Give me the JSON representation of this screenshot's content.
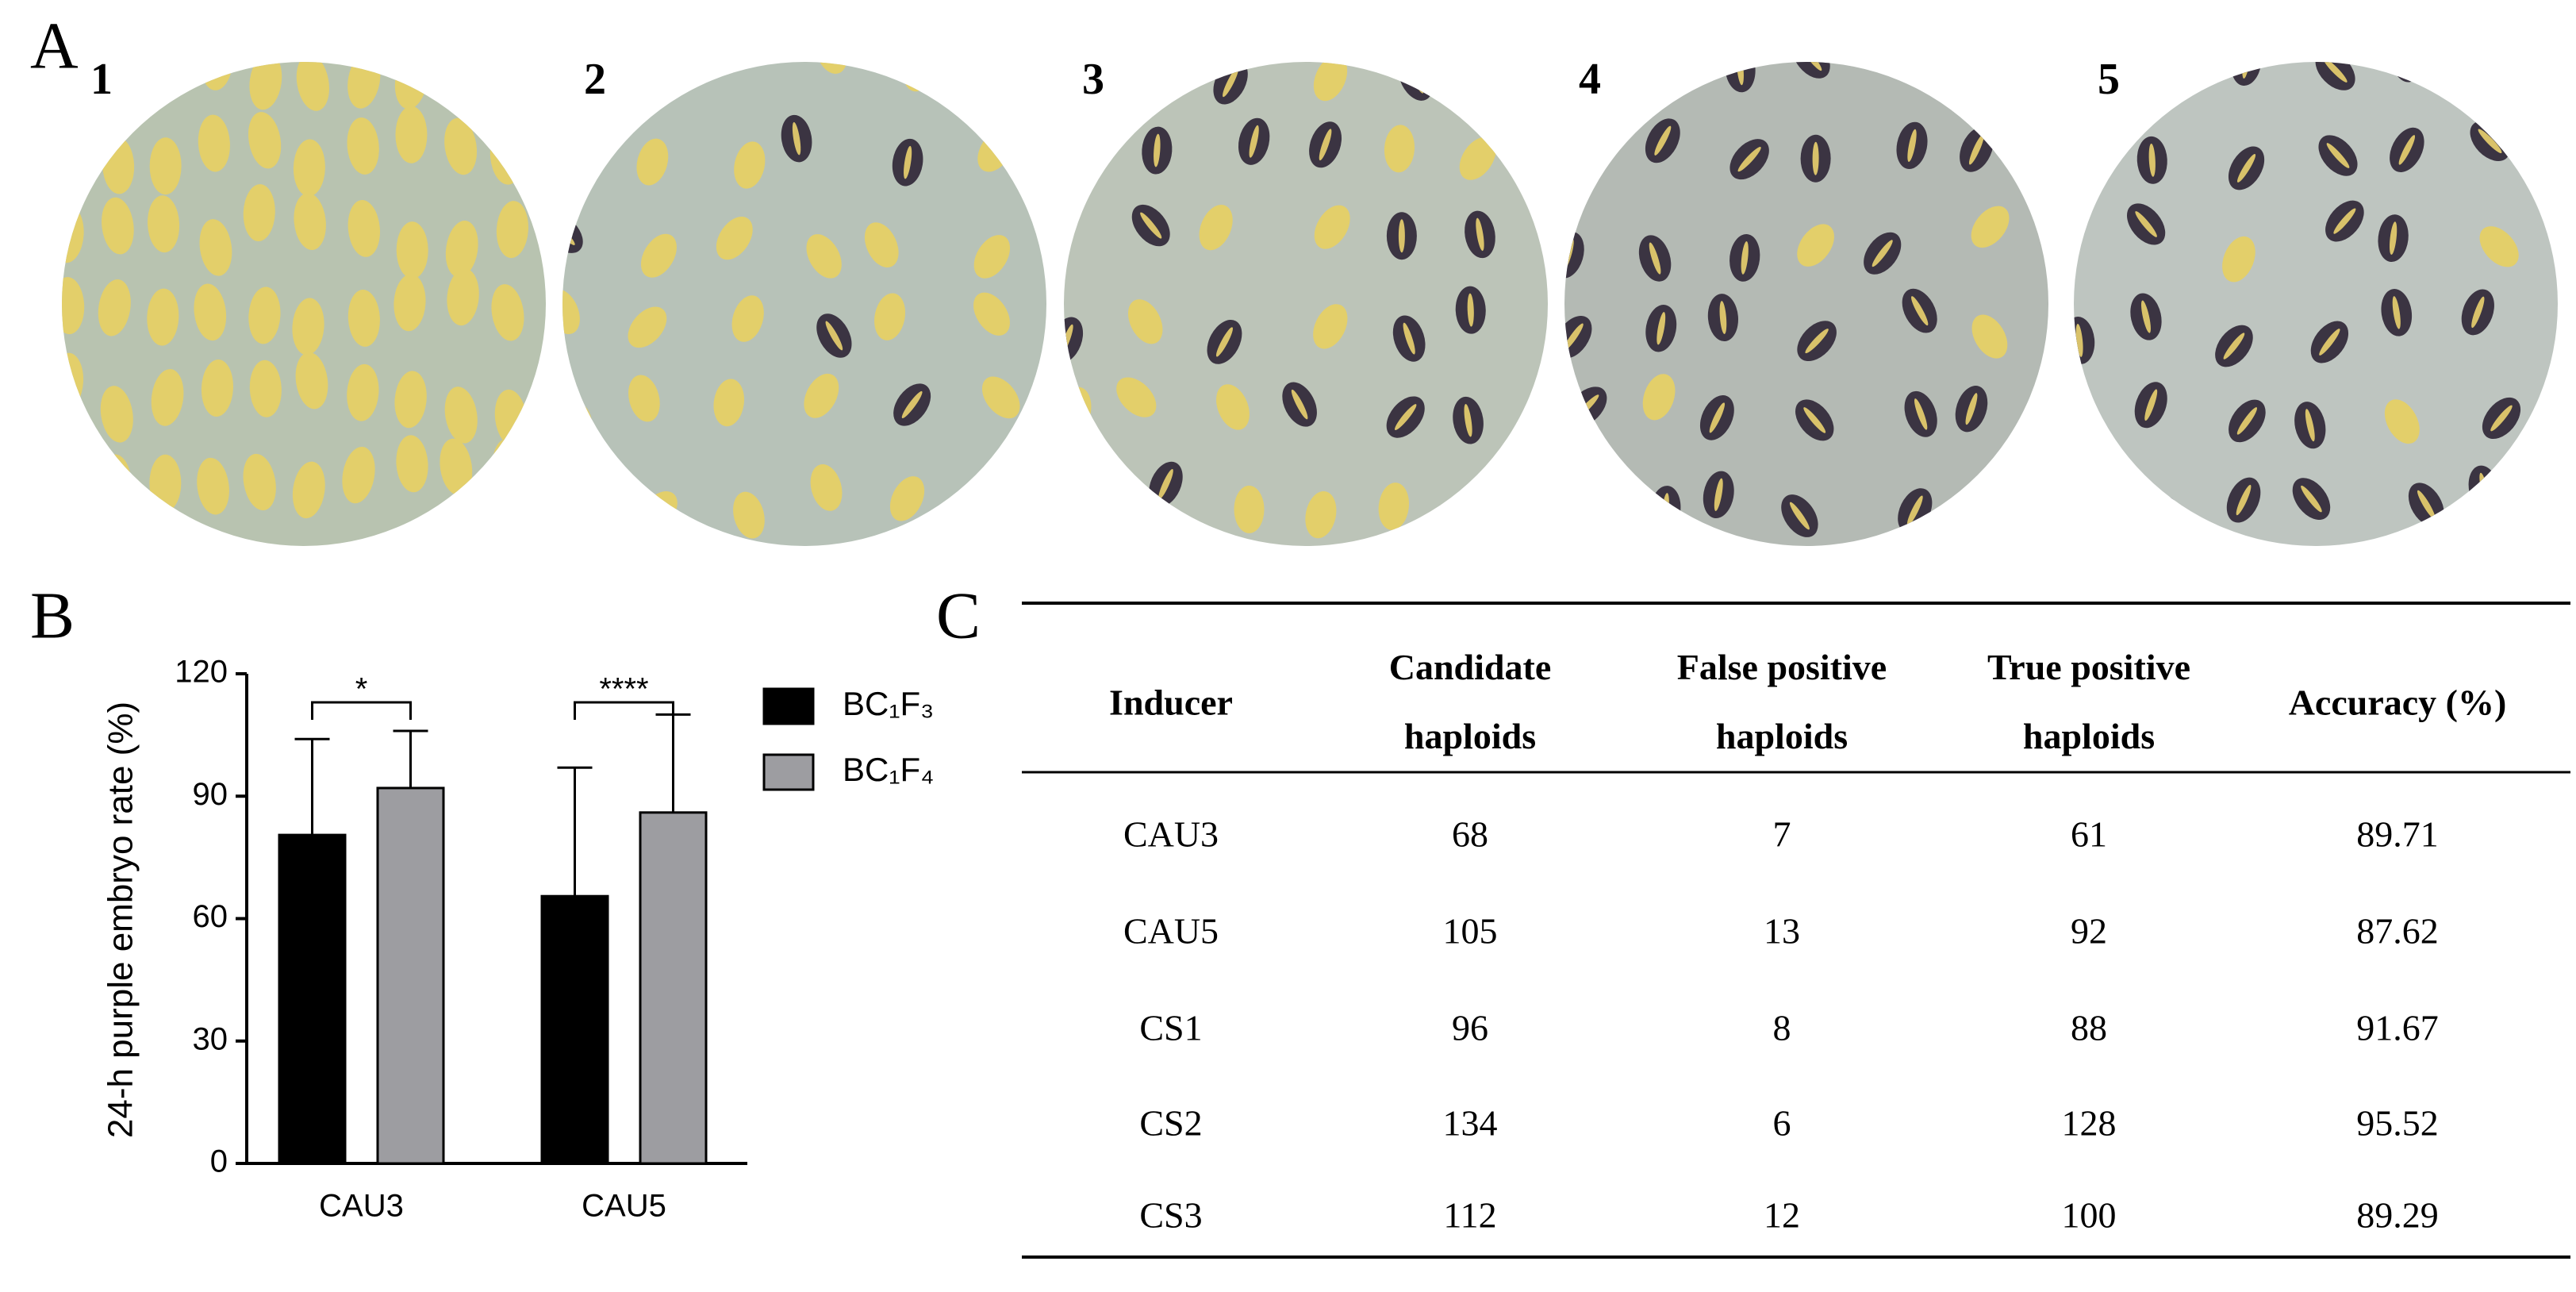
{
  "panel_labels": [
    "A",
    "B",
    "C"
  ],
  "photos": {
    "labels": [
      "1",
      "2",
      "3",
      "4",
      "5"
    ]
  },
  "chart_data": {
    "type": "bar",
    "y_label": "24-h purple embryo rate (%)",
    "categories": [
      "CAU3",
      "CAU5"
    ],
    "series": [
      {
        "name": "BC₁F₃",
        "color": "#000000",
        "values": [
          80.5,
          65.5
        ],
        "errors": [
          23.5,
          31.5
        ]
      },
      {
        "name": "BC₁F₄",
        "color": "#9d9da1",
        "values": [
          92,
          86
        ],
        "errors": [
          14,
          24
        ]
      }
    ],
    "annotations": [
      "*",
      "****"
    ],
    "ylim": [
      0,
      120
    ],
    "yticks": [
      0,
      30,
      60,
      90,
      120
    ],
    "grid": false,
    "legend": "right"
  },
  "table": {
    "header": [
      "Inducer",
      "Candidate haploids",
      "False positive haploids",
      "True positive haploids",
      "Accuracy (%)"
    ],
    "rows": [
      [
        "CAU3",
        68,
        7,
        61,
        89.71
      ],
      [
        "CAU5",
        105,
        13,
        92,
        87.62
      ],
      [
        "CS1",
        96,
        8,
        88,
        91.67
      ],
      [
        "CS2",
        134,
        6,
        128,
        95.52
      ],
      [
        "CS3",
        112,
        12,
        100,
        89.29
      ]
    ]
  }
}
